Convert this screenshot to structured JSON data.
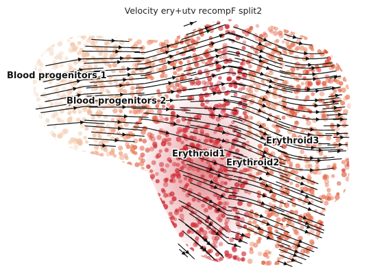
{
  "chart_data": {
    "type": "scatter",
    "subtype": "velocity-stream-embedding",
    "title": "Velocity ery+utv recompF split2",
    "xlabel": "",
    "ylabel": "",
    "axes_visible": false,
    "grid": false,
    "legend": "none",
    "colormap": [
      "#f6e3d3",
      "#f3c6a7",
      "#eea07d",
      "#e25b3a",
      "#cf2a32"
    ],
    "stream_color": "#111111",
    "clusters": [
      {
        "name": "Blood progenitors 1"
      },
      {
        "name": "Blood progenitors 2"
      },
      {
        "name": "Erythroid1"
      },
      {
        "name": "Erythroid2"
      },
      {
        "name": "Erythroid3"
      }
    ]
  }
}
